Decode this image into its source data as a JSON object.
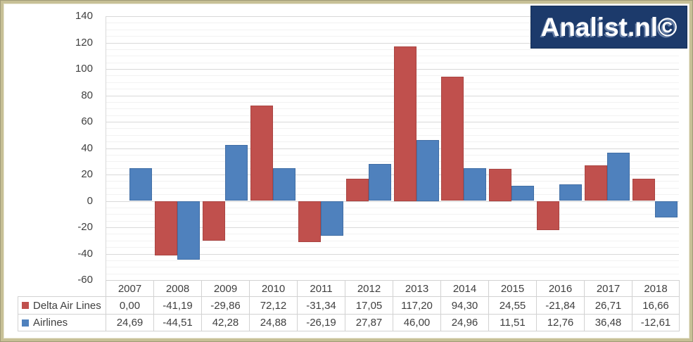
{
  "brand": {
    "logo_text": "Analist.nl©",
    "background": "#1c3a6b",
    "text_color": "#ffffff"
  },
  "chart_data": {
    "type": "bar",
    "categories": [
      "2007",
      "2008",
      "2009",
      "2010",
      "2011",
      "2012",
      "2013",
      "2014",
      "2015",
      "2016",
      "2017",
      "2018"
    ],
    "series": [
      {
        "name": "Delta Air Lines",
        "color": "#c0504d",
        "values": [
          0,
          -41.19,
          -29.86,
          72.12,
          -31.34,
          17.05,
          117.2,
          94.3,
          24.55,
          -21.84,
          26.71,
          16.66
        ],
        "display": [
          "0,00",
          "-41,19",
          "-29,86",
          "72,12",
          "-31,34",
          "17,05",
          "117,20",
          "94,30",
          "24,55",
          "-21,84",
          "26,71",
          "16,66"
        ]
      },
      {
        "name": "Airlines",
        "color": "#4f81bd",
        "values": [
          24.69,
          -44.51,
          42.28,
          24.88,
          -26.19,
          27.87,
          46.0,
          24.96,
          11.51,
          12.76,
          36.48,
          -12.61
        ],
        "display": [
          "24,69",
          "-44,51",
          "42,28",
          "24,88",
          "-26,19",
          "27,87",
          "46,00",
          "24,96",
          "11,51",
          "12,76",
          "36,48",
          "-12,61"
        ]
      }
    ],
    "ylim": [
      -60,
      140
    ],
    "ytick_step": 20,
    "yticks": [
      "140",
      "120",
      "100",
      "80",
      "60",
      "40",
      "20",
      "0",
      "-20",
      "-40",
      "-60"
    ],
    "minor_gridline_step": 5,
    "grid": true,
    "legend_position": "table-left-column",
    "decimal_separator": ","
  }
}
